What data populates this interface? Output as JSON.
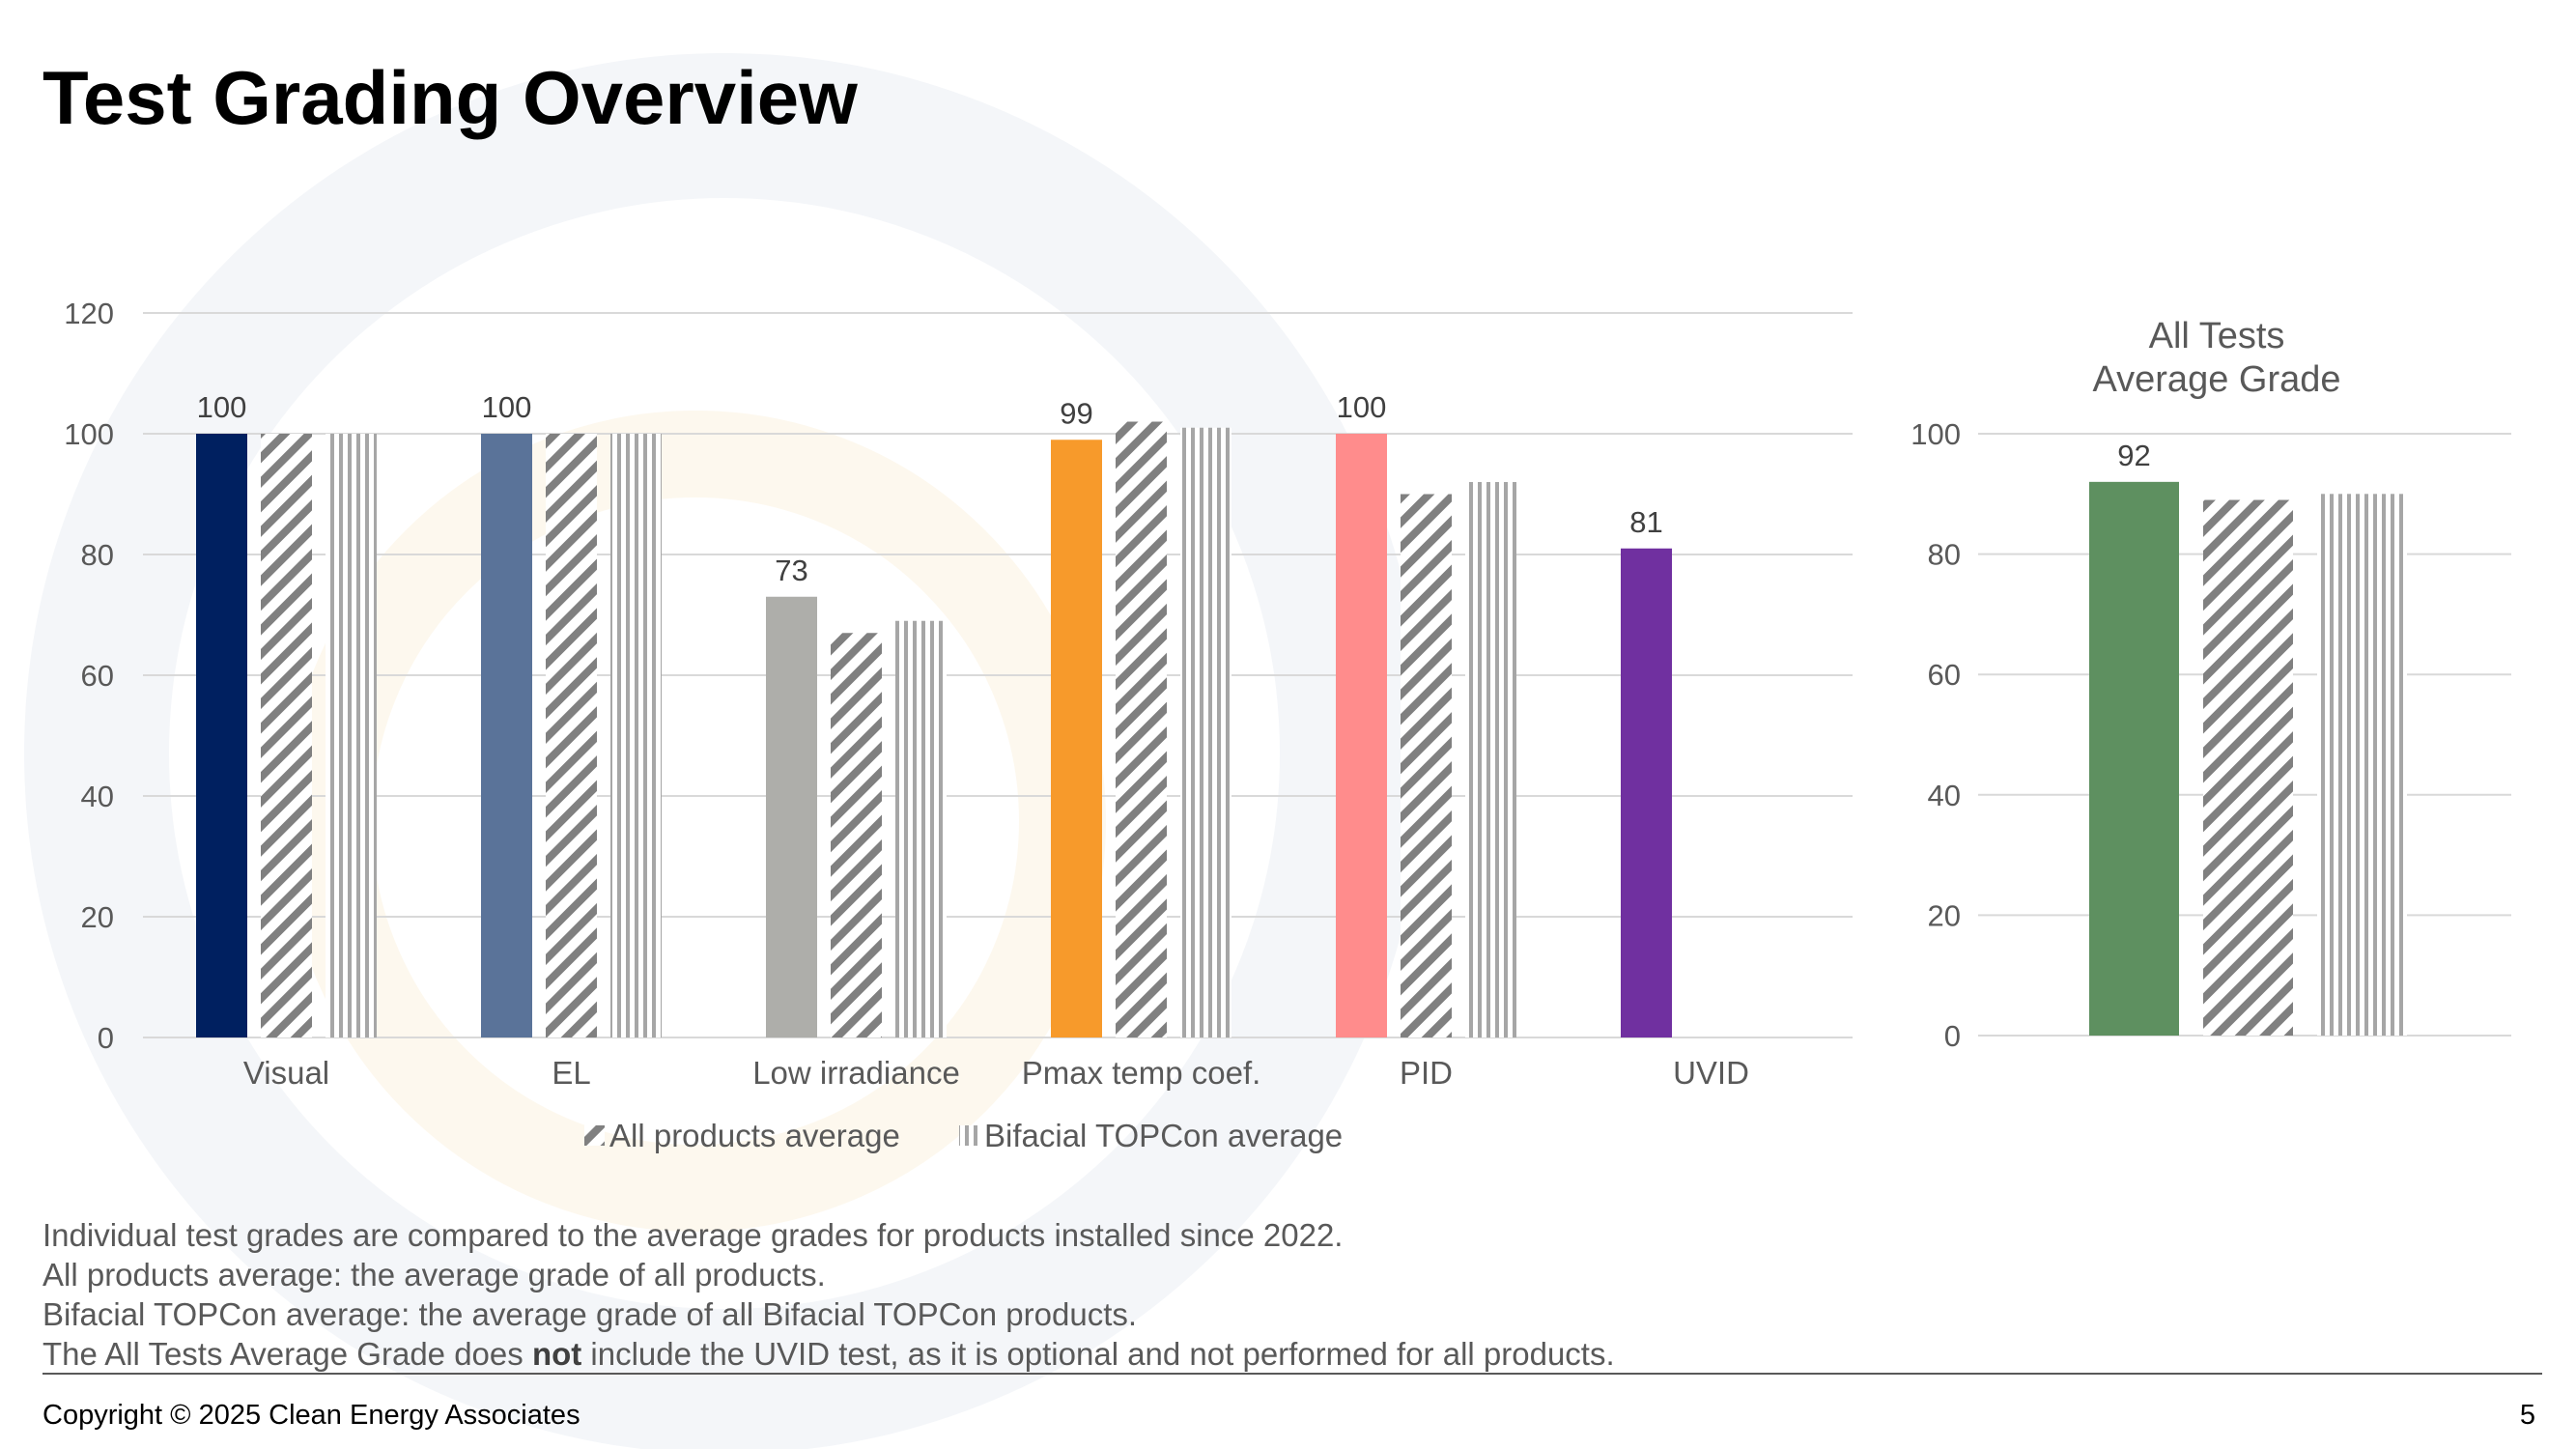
{
  "slide": {
    "title": "Test Grading Overview",
    "page_number": "5",
    "copyright": "Copyright © 2025 Clean Energy Associates"
  },
  "notes": {
    "line1": "Individual test grades are compared to the average grades for products installed since 2022.",
    "line2": "All products average: the average grade of all products.",
    "line3": "Bifacial TOPCon average: the average grade of all Bifacial TOPCon products.",
    "line4_pre": "The All Tests Average Grade does ",
    "line4_bold": "not",
    "line4_post": " include the UVID test, as it is optional and not performed for all products."
  },
  "chart_data": [
    {
      "type": "bar",
      "title": "",
      "categories": [
        "Visual",
        "EL",
        "Low irradiance",
        "Pmax temp coef.",
        "PID",
        "UVID"
      ],
      "bar_colors": [
        "#002060",
        "#5A7399",
        "#AEAEAA",
        "#F79A2B",
        "#FF8C8C",
        "#7030A0"
      ],
      "series": [
        {
          "name": "",
          "values": [
            100,
            100,
            73,
            99,
            100,
            81
          ],
          "data_labels": [
            "100",
            "100",
            "73",
            "99",
            "100",
            "81"
          ]
        },
        {
          "name": "All products average",
          "values": [
            100,
            100,
            67,
            102,
            90,
            null
          ],
          "pattern": "diagonal"
        },
        {
          "name": "Bifacial TOPCon average",
          "values": [
            100,
            100,
            69,
            101,
            92,
            null
          ],
          "pattern": "vertical"
        }
      ],
      "ylim": [
        0,
        120
      ],
      "y_ticks": [
        "0",
        "20",
        "40",
        "60",
        "80",
        "100",
        "120"
      ],
      "grid": true,
      "legend": "bottom"
    },
    {
      "type": "bar",
      "title": "All Tests Average Grade",
      "title_lines": [
        "All Tests",
        "Average Grade"
      ],
      "categories": [
        ""
      ],
      "bar_colors": [
        "#5E9060"
      ],
      "series": [
        {
          "name": "",
          "values": [
            92
          ],
          "data_labels": [
            "92"
          ]
        },
        {
          "name": "All products average",
          "values": [
            89
          ],
          "pattern": "diagonal"
        },
        {
          "name": "Bifacial TOPCon average",
          "values": [
            90
          ],
          "pattern": "vertical"
        }
      ],
      "ylim": [
        0,
        100
      ],
      "y_ticks": [
        "0",
        "20",
        "40",
        "60",
        "80",
        "100"
      ],
      "grid": true
    }
  ]
}
